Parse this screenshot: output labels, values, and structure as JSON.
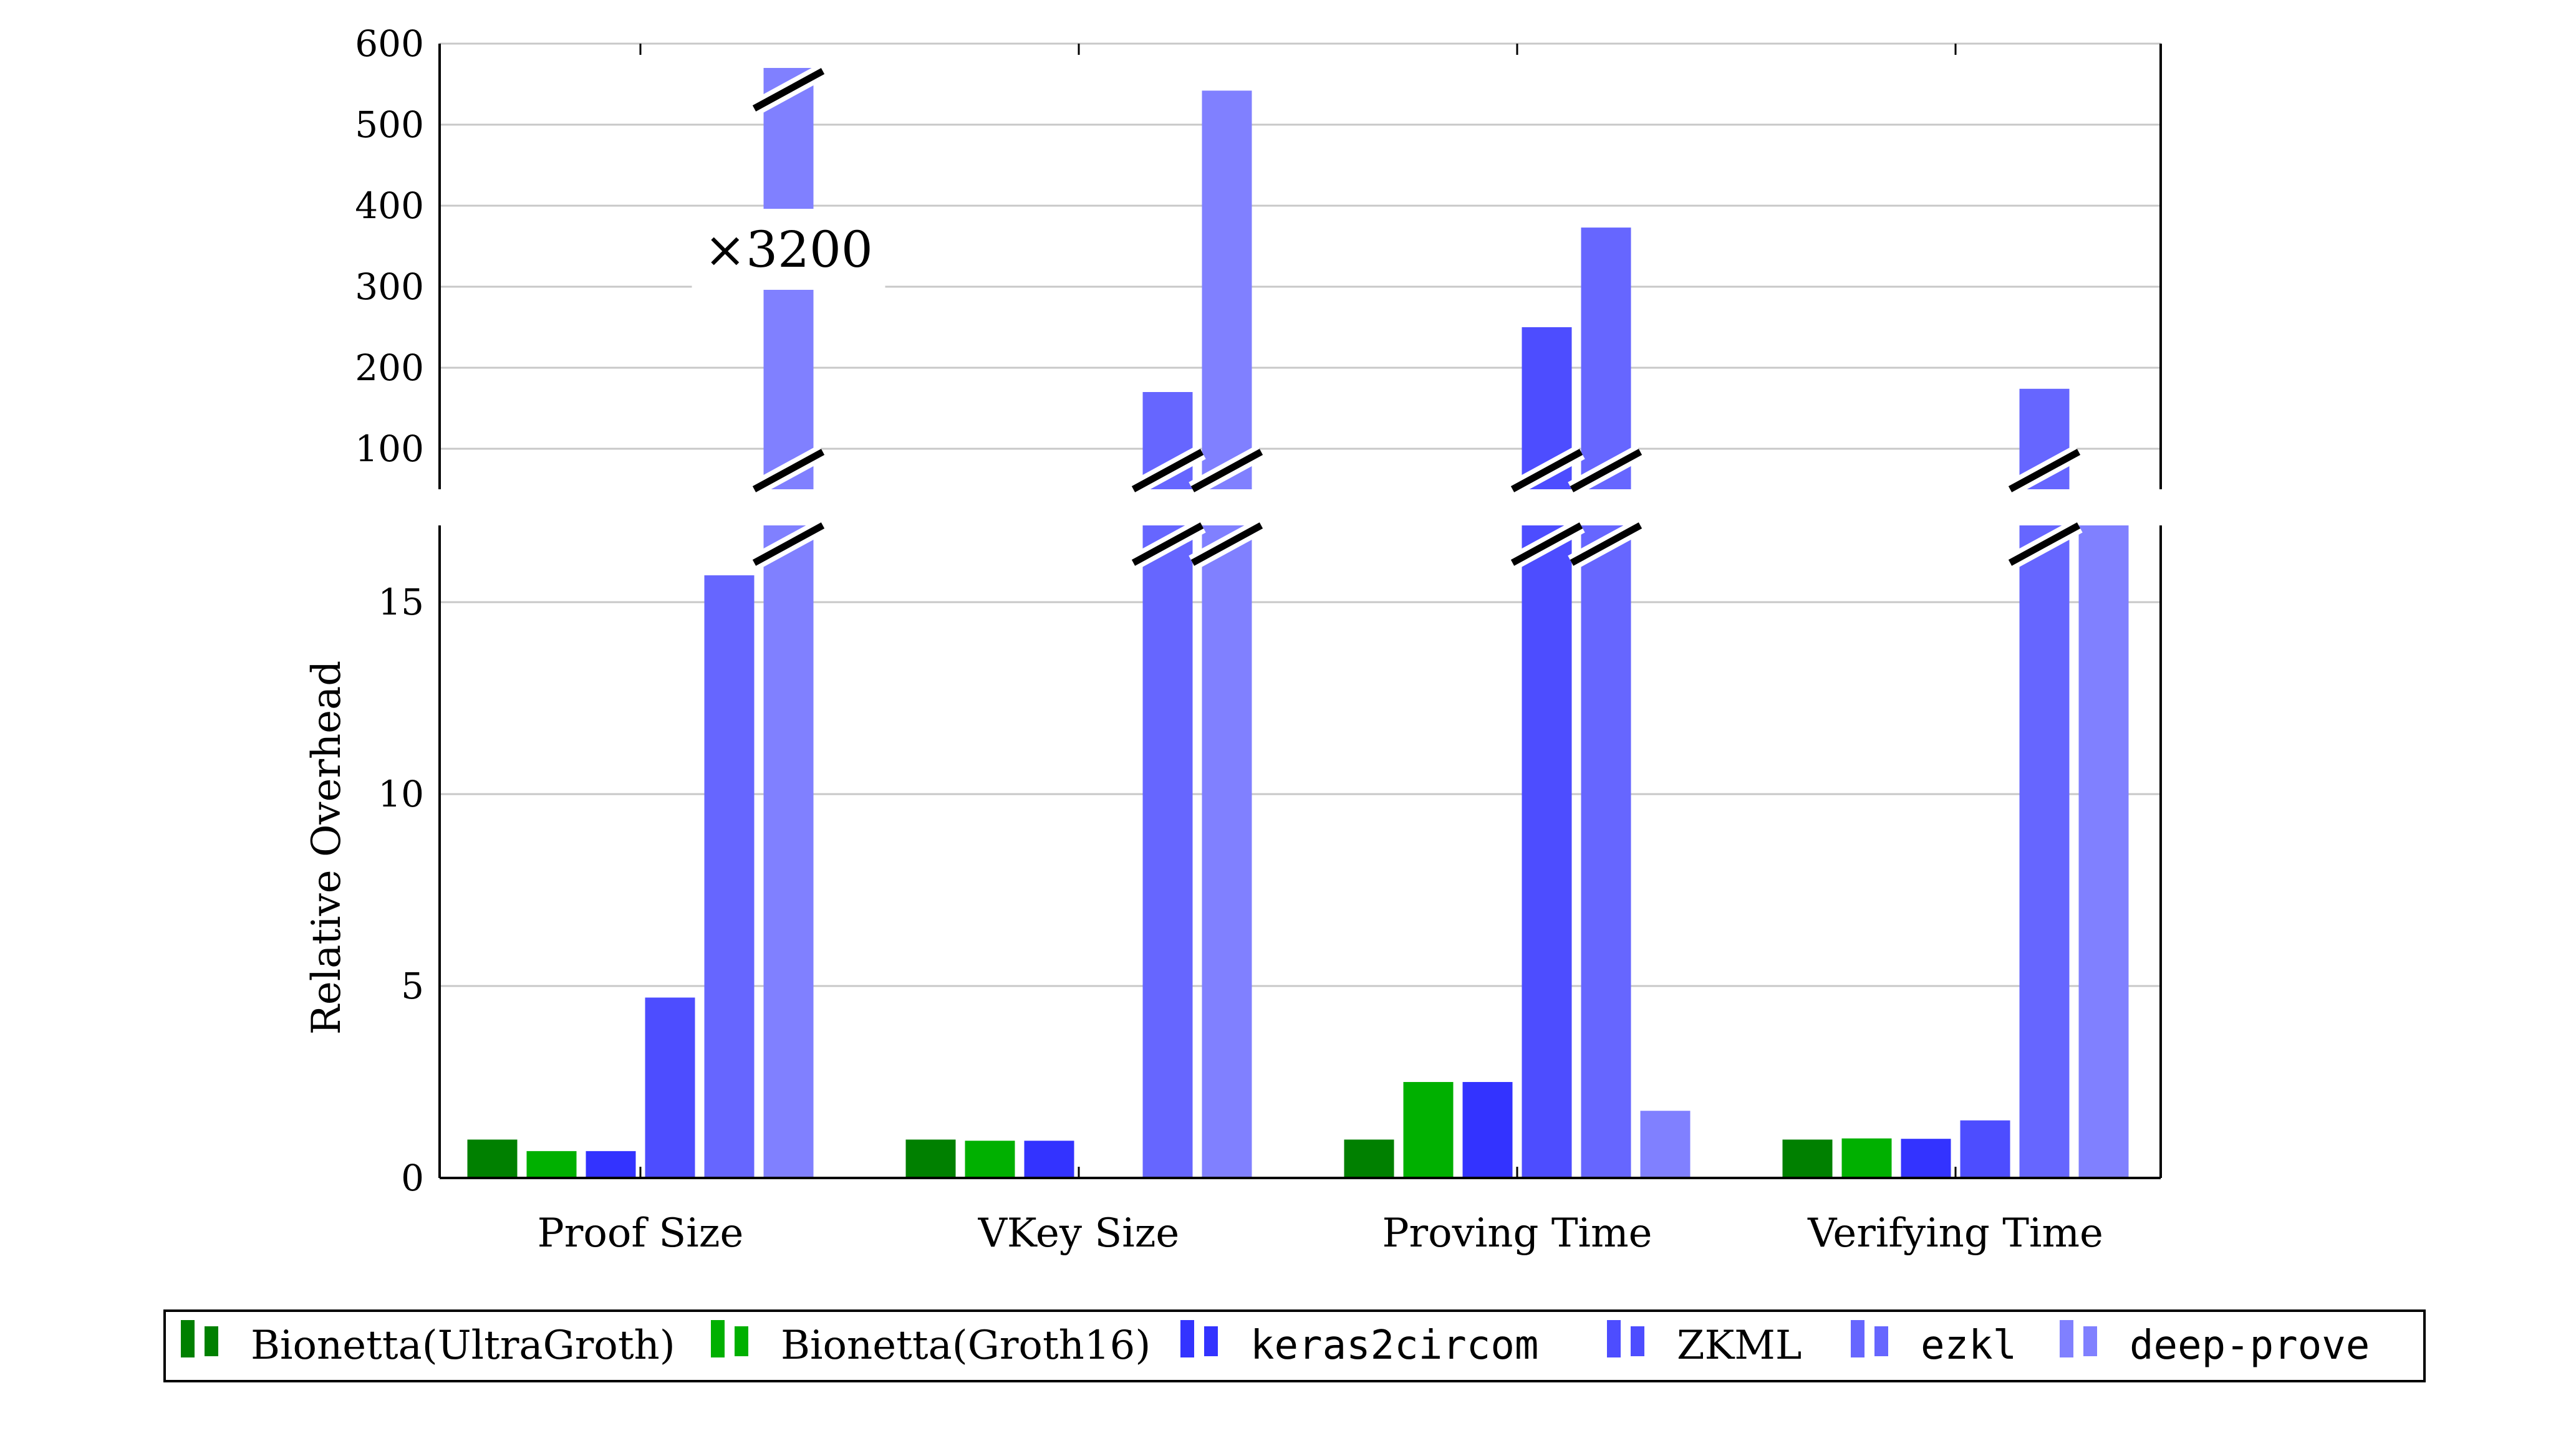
{
  "chart_data": {
    "type": "bar",
    "ylabel": "Relative Overhead",
    "categories": [
      "Proof Size",
      "VKey Size",
      "Proving Time",
      "Verifying Time"
    ],
    "y_axis": {
      "broken": true,
      "lower_range": [
        0,
        17
      ],
      "lower_ticks": [
        "0",
        "5",
        "10",
        "15"
      ],
      "upper_range": [
        50,
        600
      ],
      "upper_ticks": [
        "100",
        "200",
        "300",
        "400",
        "500",
        "600"
      ]
    },
    "grid": true,
    "legend_position": "bottom",
    "series": [
      {
        "name": "Bionetta(UltraGroth)",
        "color": "#008000",
        "mono": false,
        "values": [
          1,
          1,
          1,
          1
        ]
      },
      {
        "name": "Bionetta(Groth16)",
        "color": "#00b000",
        "mono": false,
        "values": [
          0.7,
          0.97,
          2.5,
          1.03
        ]
      },
      {
        "name": "keras2circom",
        "color": "#3333ff",
        "mono": true,
        "values": [
          0.7,
          0.97,
          2.5,
          1.02
        ]
      },
      {
        "name": "ZKML",
        "color": "#4d4dff",
        "mono": false,
        "values": [
          4.7,
          null,
          250,
          1.5
        ]
      },
      {
        "name": "ezkl",
        "color": "#6666ff",
        "mono": true,
        "values": [
          15.7,
          170,
          373,
          174
        ]
      },
      {
        "name": "deep-prove",
        "color": "#8080ff",
        "mono": true,
        "values": [
          3200,
          542,
          1.75,
          17
        ]
      }
    ],
    "annotations": [
      {
        "text": "×3200",
        "category": "Proof Size",
        "series": "deep-prove"
      }
    ]
  }
}
